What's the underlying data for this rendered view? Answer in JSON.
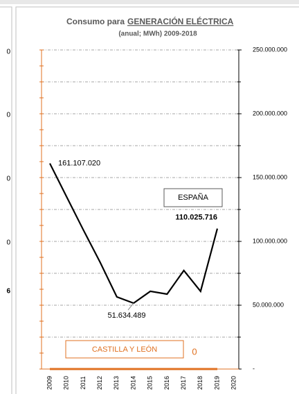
{
  "left_panel": {
    "labels": [
      "0",
      "0",
      "0",
      "0",
      "6"
    ]
  },
  "chart_data": {
    "type": "line",
    "title": "Consumo para",
    "title_underlined": "GENERACIÓN ELÉCTRICA",
    "subtitle": "(anual; MWh) 2009-2018",
    "categories": [
      "2009",
      "2010",
      "2011",
      "2012",
      "2013",
      "2014",
      "2015",
      "2016",
      "2017",
      "2018",
      "2019",
      "2020"
    ],
    "series": [
      {
        "name": "ESPAÑA",
        "color": "#000000",
        "values": [
          161107020,
          135000000,
          109000000,
          83700000,
          56500000,
          51634489,
          60900000,
          58700000,
          77200000,
          60900000,
          110025716,
          null
        ],
        "value_labels": [
          "161.107.020",
          null,
          null,
          null,
          null,
          "51.634.489",
          null,
          null,
          null,
          null,
          "110.025.716",
          null
        ]
      },
      {
        "name": "CASTILLA Y LEÓN",
        "color": "#e07020",
        "values": [
          0,
          0,
          0,
          0,
          0,
          0,
          0,
          0,
          0,
          0,
          0,
          null
        ]
      }
    ],
    "ylim": [
      0,
      250000000
    ],
    "yticks": [
      {
        "value": 0,
        "label": "-"
      },
      {
        "value": 50000000,
        "label": "50.000.000"
      },
      {
        "value": 100000000,
        "label": "100.000.000"
      },
      {
        "value": 150000000,
        "label": "150.000.000"
      },
      {
        "value": 200000000,
        "label": "200.000.000"
      },
      {
        "value": 250000000,
        "label": "250.000.000"
      }
    ],
    "yticks_minor": [
      25000000,
      75000000,
      125000000,
      175000000,
      225000000
    ],
    "grid": true
  }
}
